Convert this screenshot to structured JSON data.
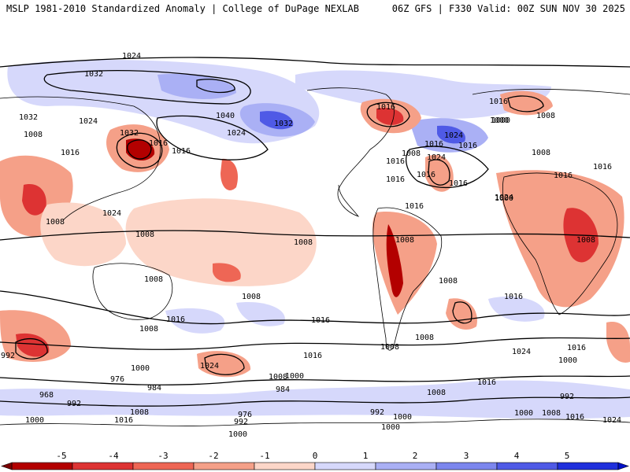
{
  "header": {
    "title_left": "MSLP 1981-2010 Standardized Anomaly | College of DuPage NEXLAB",
    "title_right": "06Z GFS | F330 Valid: 00Z SUN NOV 30 2025"
  },
  "colors": {
    "neg": [
      "#7a0000",
      "#b30000",
      "#dd3333",
      "#ee6655",
      "#f5a088",
      "#fcd6c8"
    ],
    "zero": "#ffffff",
    "pos": [
      "#d6d8fb",
      "#aab0f5",
      "#7c86ee",
      "#4f5ae6",
      "#2030dc",
      "#0010c8"
    ]
  },
  "colorbar": {
    "ticks": [
      "-5",
      "-4",
      "-3",
      "-2",
      "-1",
      "0",
      "1",
      "2",
      "3",
      "4",
      "5"
    ]
  },
  "isobar_labels": [
    {
      "text": "1024"
    },
    {
      "text": "1032"
    },
    {
      "text": "1024"
    },
    {
      "text": "1032"
    },
    {
      "text": "1040"
    },
    {
      "text": "1032"
    },
    {
      "text": "1024"
    },
    {
      "text": "1016"
    },
    {
      "text": "1016"
    },
    {
      "text": "1016"
    },
    {
      "text": "1000"
    },
    {
      "text": "1024"
    },
    {
      "text": "1016"
    },
    {
      "text": "1008"
    },
    {
      "text": "1016"
    },
    {
      "text": "1016"
    },
    {
      "text": "1008"
    },
    {
      "text": "1016"
    },
    {
      "text": "1016"
    },
    {
      "text": "1016"
    },
    {
      "text": "1024"
    },
    {
      "text": "1016"
    },
    {
      "text": "1000"
    },
    {
      "text": "1008"
    },
    {
      "text": "1016"
    },
    {
      "text": "1032"
    },
    {
      "text": "1016"
    },
    {
      "text": "1016"
    },
    {
      "text": "1024"
    },
    {
      "text": "1008"
    },
    {
      "text": "1008"
    },
    {
      "text": "1008"
    },
    {
      "text": "1008"
    },
    {
      "text": "1008"
    },
    {
      "text": "1008"
    },
    {
      "text": "1008"
    },
    {
      "text": "1008"
    },
    {
      "text": "1016"
    },
    {
      "text": "1016"
    },
    {
      "text": "1008"
    },
    {
      "text": "1016"
    },
    {
      "text": "1016"
    },
    {
      "text": "1008"
    },
    {
      "text": "1024"
    },
    {
      "text": "1016"
    },
    {
      "text": "1000"
    },
    {
      "text": "1024"
    },
    {
      "text": "992"
    },
    {
      "text": "1000"
    },
    {
      "text": "976"
    },
    {
      "text": "984"
    },
    {
      "text": "968"
    },
    {
      "text": "992"
    },
    {
      "text": "1008"
    },
    {
      "text": "1000"
    },
    {
      "text": "1016"
    },
    {
      "text": "1008"
    },
    {
      "text": "1000"
    },
    {
      "text": "984"
    },
    {
      "text": "976"
    },
    {
      "text": "992"
    },
    {
      "text": "1000"
    },
    {
      "text": "1008"
    },
    {
      "text": "992"
    },
    {
      "text": "1000"
    },
    {
      "text": "1000"
    },
    {
      "text": "1008"
    },
    {
      "text": "1016"
    },
    {
      "text": "992"
    },
    {
      "text": "1000"
    },
    {
      "text": "1008"
    },
    {
      "text": "1016"
    },
    {
      "text": "1024"
    },
    {
      "text": "1016"
    },
    {
      "text": "1024"
    },
    {
      "text": "1008"
    },
    {
      "text": "1000"
    }
  ]
}
